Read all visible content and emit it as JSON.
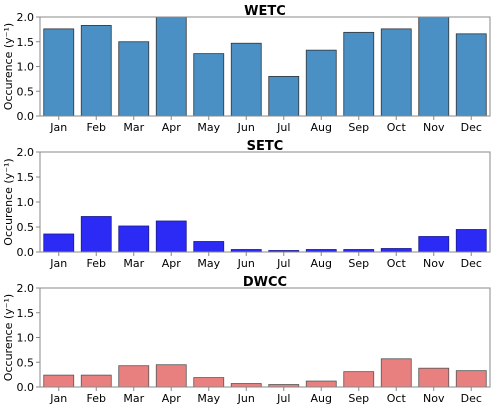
{
  "chart_data": [
    {
      "type": "bar",
      "title": "WETC",
      "ylabel": "Occurence (y⁻¹)",
      "ylim": [
        0,
        2.0
      ],
      "yticks": [
        "0.0",
        "0.5",
        "1.0",
        "1.5",
        "2.0"
      ],
      "categories": [
        "Jan",
        "Feb",
        "Mar",
        "Apr",
        "May",
        "Jun",
        "Jul",
        "Aug",
        "Sep",
        "Oct",
        "Nov",
        "Dec"
      ],
      "values": [
        1.76,
        1.83,
        1.5,
        2.0,
        1.26,
        1.47,
        0.8,
        1.33,
        1.69,
        1.76,
        2.0,
        1.66
      ],
      "color": "#4a90c4",
      "edge_color": "#333333"
    },
    {
      "type": "bar",
      "title": "SETC",
      "ylabel": "Occurence (y⁻¹)",
      "ylim": [
        0,
        2.0
      ],
      "yticks": [
        "0.0",
        "0.5",
        "1.0",
        "1.5",
        "2.0"
      ],
      "categories": [
        "Jan",
        "Feb",
        "Mar",
        "Apr",
        "May",
        "Jun",
        "Jul",
        "Aug",
        "Sep",
        "Oct",
        "Nov",
        "Dec"
      ],
      "values": [
        0.36,
        0.71,
        0.52,
        0.62,
        0.21,
        0.05,
        0.03,
        0.05,
        0.05,
        0.07,
        0.31,
        0.45
      ],
      "color": "#2b2bf5",
      "edge_color": "#1a1a8c"
    },
    {
      "type": "bar",
      "title": "DWCC",
      "ylabel": "Occurence (y⁻¹)",
      "ylim": [
        0,
        2.0
      ],
      "yticks": [
        "0.0",
        "0.5",
        "1.0",
        "1.5",
        "2.0"
      ],
      "categories": [
        "Jan",
        "Feb",
        "Mar",
        "Apr",
        "May",
        "Jun",
        "Jul",
        "Aug",
        "Sep",
        "Oct",
        "Nov",
        "Dec"
      ],
      "values": [
        0.24,
        0.24,
        0.43,
        0.45,
        0.19,
        0.07,
        0.05,
        0.12,
        0.31,
        0.57,
        0.38,
        0.33
      ],
      "color": "#e88080",
      "edge_color": "#555555"
    }
  ]
}
